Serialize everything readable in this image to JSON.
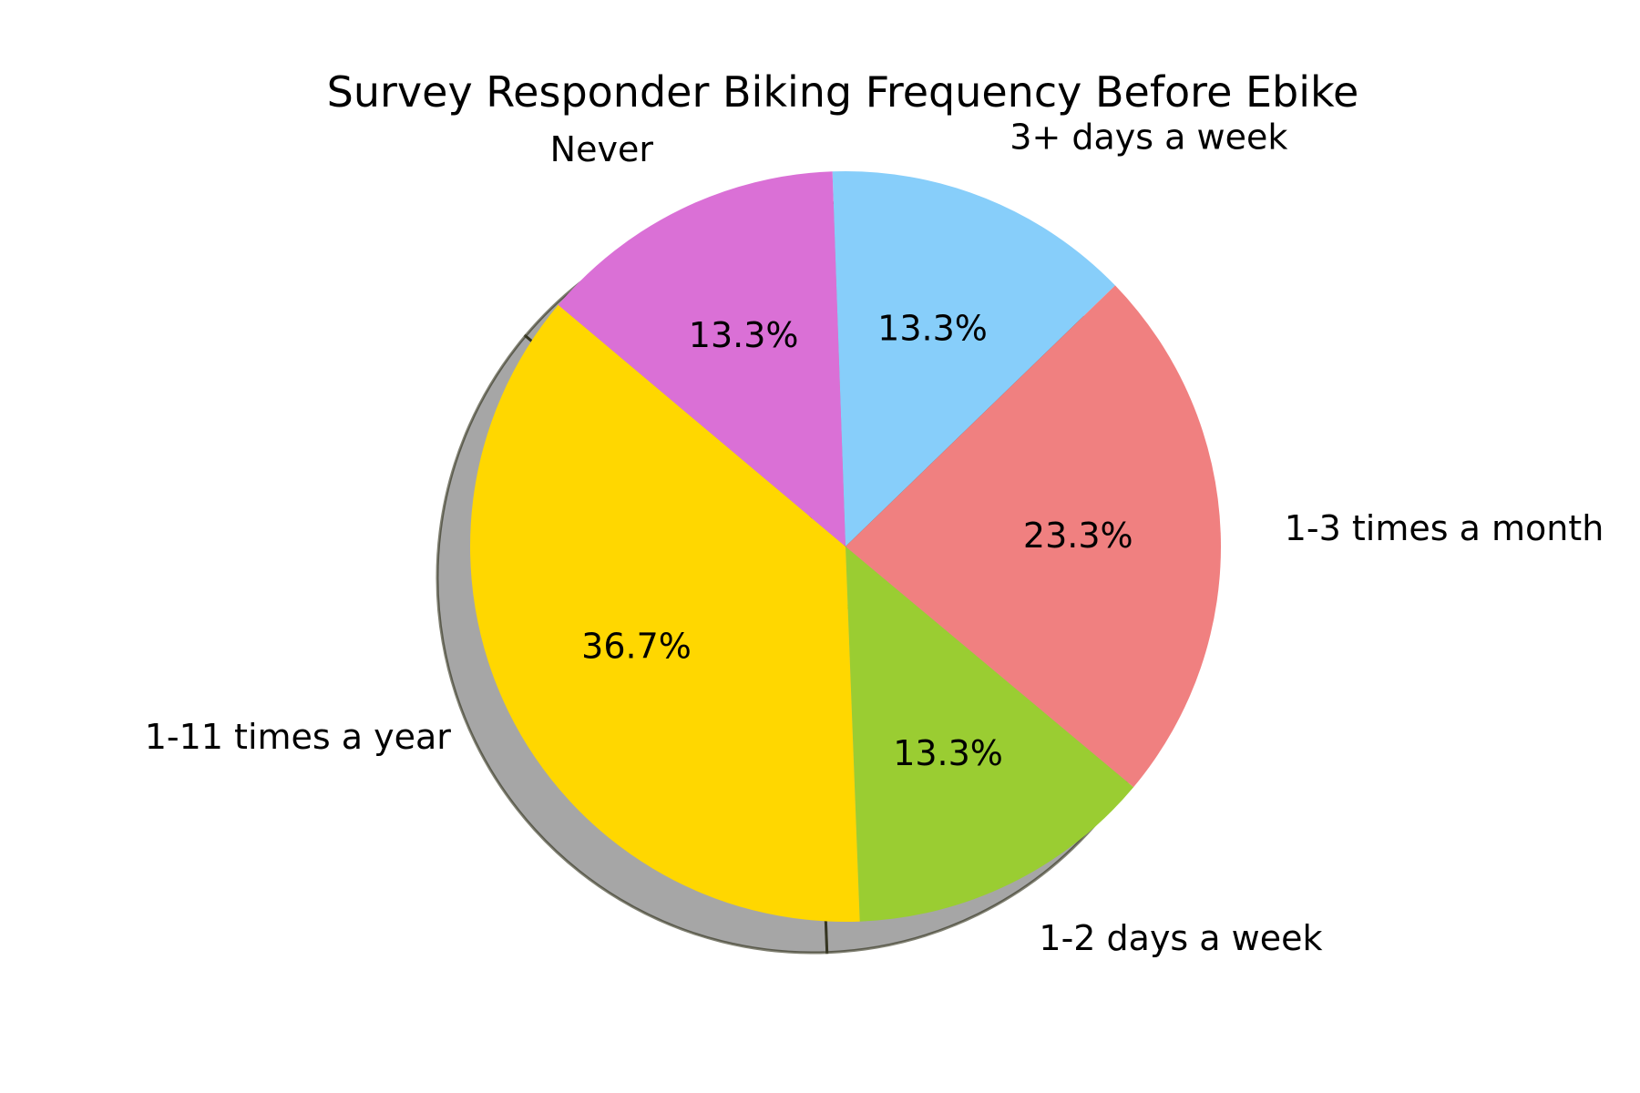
{
  "chart_data": {
    "type": "pie",
    "title": "Survey Responder Biking Frequency Before Ebike",
    "slices": [
      {
        "label": "3+ days a week",
        "value": 13.3,
        "pct_label": "13.3%",
        "color": "#87CEFA"
      },
      {
        "label": "1-3 times a month",
        "value": 23.3,
        "pct_label": "23.3%",
        "color": "#F08080"
      },
      {
        "label": "1-2 days a week",
        "value": 13.3,
        "pct_label": "13.3%",
        "color": "#9ACD32"
      },
      {
        "label": "1-11 times a year",
        "value": 36.7,
        "pct_label": "36.7%",
        "color": "#FFD700"
      },
      {
        "label": "Never",
        "value": 13.3,
        "pct_label": "13.3%",
        "color": "#DA70D6"
      }
    ],
    "start_angle_deg": 92,
    "direction": "clockwise",
    "shadow": true
  }
}
